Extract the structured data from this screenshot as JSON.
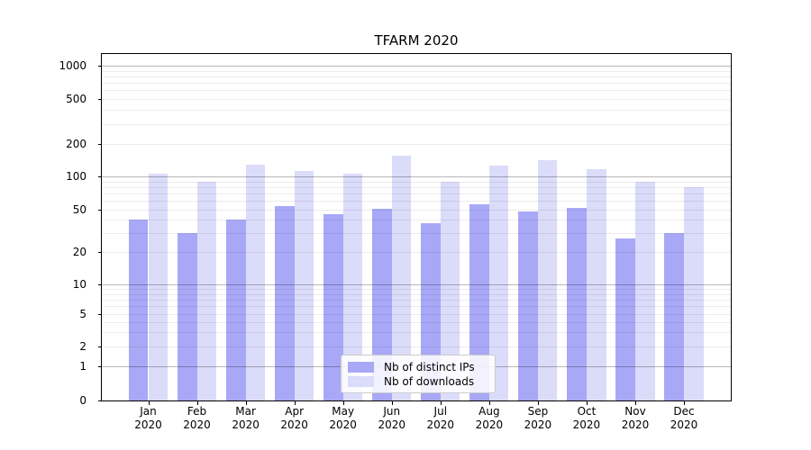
{
  "chart_data": {
    "type": "bar",
    "title": "TFARM 2020",
    "xlabel": "",
    "ylabel": "",
    "year_label": "2020",
    "categories": [
      "Jan",
      "Feb",
      "Mar",
      "Apr",
      "May",
      "Jun",
      "Jul",
      "Aug",
      "Sep",
      "Oct",
      "Nov",
      "Dec"
    ],
    "series": [
      {
        "name": "Nb of distinct IPs",
        "color": "#a8a8f7",
        "values": [
          40,
          30,
          40,
          54,
          45,
          51,
          37,
          56,
          48,
          52,
          27,
          30
        ]
      },
      {
        "name": "Nb of downloads",
        "color": "#dbdbfa",
        "values": [
          107,
          89,
          129,
          112,
          106,
          155,
          89,
          127,
          142,
          117,
          89,
          80
        ]
      }
    ],
    "yticks": [
      0,
      1,
      2,
      5,
      10,
      20,
      50,
      100,
      200,
      500,
      1000
    ],
    "yaxis_scale": "log-like with linear segment near zero",
    "ylim": [
      0,
      1300
    ],
    "grid": "horizontal major (powers of 10, darker) and minor (lighter) lines drawn over bars",
    "legend_position": "lower center inside plot"
  }
}
